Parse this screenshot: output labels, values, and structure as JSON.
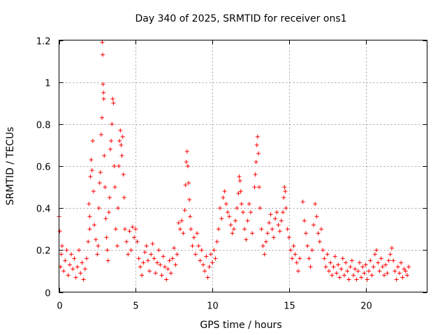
{
  "chart_data": {
    "type": "scatter",
    "title": "Day 340 of 2025, SRMTID for receiver ons1",
    "xlabel": "GPS time / hours",
    "ylabel": "SRMTID / TECUs",
    "xlim": [
      0,
      24
    ],
    "ylim": [
      0,
      1.2
    ],
    "x_ticks": [
      0,
      5,
      10,
      15,
      20
    ],
    "y_ticks": [
      0,
      0.2,
      0.4,
      0.6,
      0.8,
      1,
      1.2
    ],
    "x_tick_labels": [
      "0",
      "5",
      "10",
      "15",
      "20"
    ],
    "y_tick_labels": [
      "0",
      "0.2",
      "0.4",
      "0.6",
      "0.8",
      "1",
      "1.2"
    ],
    "grid": true,
    "marker": "+",
    "series": [
      {
        "name": "ons1",
        "color": "#ff0000",
        "points": [
          [
            0.0,
            0.36
          ],
          [
            0.05,
            0.29
          ],
          [
            0.1,
            0.12
          ],
          [
            0.15,
            0.18
          ],
          [
            0.2,
            0.22
          ],
          [
            0.3,
            0.1
          ],
          [
            0.4,
            0.15
          ],
          [
            0.5,
            0.2
          ],
          [
            0.6,
            0.08
          ],
          [
            0.7,
            0.13
          ],
          [
            0.8,
            0.18
          ],
          [
            0.9,
            0.11
          ],
          [
            1.0,
            0.16
          ],
          [
            1.1,
            0.07
          ],
          [
            1.2,
            0.12
          ],
          [
            1.3,
            0.2
          ],
          [
            1.4,
            0.09
          ],
          [
            1.5,
            0.14
          ],
          [
            1.6,
            0.06
          ],
          [
            1.7,
            0.11
          ],
          [
            1.8,
            0.16
          ],
          [
            1.9,
            0.24
          ],
          [
            2.0,
            0.3
          ],
          [
            1.95,
            0.42
          ],
          [
            2.0,
            0.36
          ],
          [
            2.05,
            0.55
          ],
          [
            2.1,
            0.63
          ],
          [
            2.15,
            0.58
          ],
          [
            2.2,
            0.72
          ],
          [
            2.25,
            0.48
          ],
          [
            2.3,
            0.32
          ],
          [
            2.4,
            0.25
          ],
          [
            2.5,
            0.18
          ],
          [
            2.55,
            0.22
          ],
          [
            2.6,
            0.4
          ],
          [
            2.65,
            0.52
          ],
          [
            2.7,
            0.57
          ],
          [
            2.75,
            0.75
          ],
          [
            2.8,
            0.83
          ],
          [
            2.82,
            1.19
          ],
          [
            2.85,
            1.13
          ],
          [
            2.87,
            0.99
          ],
          [
            2.9,
            0.95
          ],
          [
            2.92,
            0.92
          ],
          [
            2.95,
            0.65
          ],
          [
            3.0,
            0.5
          ],
          [
            3.05,
            0.35
          ],
          [
            3.1,
            0.26
          ],
          [
            3.15,
            0.2
          ],
          [
            3.2,
            0.15
          ],
          [
            3.25,
            0.38
          ],
          [
            3.3,
            0.45
          ],
          [
            3.35,
            0.68
          ],
          [
            3.4,
            0.72
          ],
          [
            3.45,
            0.8
          ],
          [
            3.5,
            0.92
          ],
          [
            3.55,
            0.9
          ],
          [
            3.6,
            0.6
          ],
          [
            3.65,
            0.5
          ],
          [
            3.7,
            0.3
          ],
          [
            3.8,
            0.22
          ],
          [
            3.85,
            0.4
          ],
          [
            3.9,
            0.6
          ],
          [
            3.95,
            0.72
          ],
          [
            4.0,
            0.77
          ],
          [
            4.05,
            0.7
          ],
          [
            4.1,
            0.65
          ],
          [
            4.15,
            0.74
          ],
          [
            4.2,
            0.56
          ],
          [
            4.25,
            0.45
          ],
          [
            4.3,
            0.3
          ],
          [
            4.4,
            0.24
          ],
          [
            4.5,
            0.18
          ],
          [
            4.6,
            0.29
          ],
          [
            4.7,
            0.2
          ],
          [
            4.8,
            0.31
          ],
          [
            4.9,
            0.26
          ],
          [
            5.0,
            0.3
          ],
          [
            5.1,
            0.24
          ],
          [
            5.2,
            0.16
          ],
          [
            5.3,
            0.12
          ],
          [
            5.4,
            0.08
          ],
          [
            5.5,
            0.14
          ],
          [
            5.6,
            0.19
          ],
          [
            5.7,
            0.22
          ],
          [
            5.8,
            0.15
          ],
          [
            5.9,
            0.1
          ],
          [
            6.0,
            0.18
          ],
          [
            6.1,
            0.23
          ],
          [
            6.2,
            0.16
          ],
          [
            6.3,
            0.09
          ],
          [
            6.4,
            0.14
          ],
          [
            6.5,
            0.2
          ],
          [
            6.6,
            0.13
          ],
          [
            6.7,
            0.08
          ],
          [
            6.8,
            0.17
          ],
          [
            6.9,
            0.12
          ],
          [
            7.0,
            0.06
          ],
          [
            7.1,
            0.11
          ],
          [
            7.2,
            0.15
          ],
          [
            7.3,
            0.09
          ],
          [
            7.4,
            0.16
          ],
          [
            7.5,
            0.21
          ],
          [
            7.6,
            0.13
          ],
          [
            7.7,
            0.18
          ],
          [
            7.8,
            0.33
          ],
          [
            7.9,
            0.3
          ],
          [
            8.0,
            0.34
          ],
          [
            8.1,
            0.28
          ],
          [
            8.2,
            0.39
          ],
          [
            8.25,
            0.51
          ],
          [
            8.3,
            0.62
          ],
          [
            8.35,
            0.67
          ],
          [
            8.4,
            0.6
          ],
          [
            8.45,
            0.52
          ],
          [
            8.5,
            0.44
          ],
          [
            8.55,
            0.36
          ],
          [
            8.6,
            0.3
          ],
          [
            8.7,
            0.22
          ],
          [
            8.8,
            0.26
          ],
          [
            8.9,
            0.18
          ],
          [
            9.0,
            0.28
          ],
          [
            9.1,
            0.22
          ],
          [
            9.2,
            0.15
          ],
          [
            9.3,
            0.2
          ],
          [
            9.4,
            0.13
          ],
          [
            9.5,
            0.1
          ],
          [
            9.6,
            0.17
          ],
          [
            9.7,
            0.07
          ],
          [
            9.8,
            0.12
          ],
          [
            9.9,
            0.18
          ],
          [
            10.0,
            0.14
          ],
          [
            10.1,
            0.2
          ],
          [
            10.2,
            0.16
          ],
          [
            10.3,
            0.24
          ],
          [
            10.4,
            0.3
          ],
          [
            10.5,
            0.4
          ],
          [
            10.6,
            0.35
          ],
          [
            10.7,
            0.45
          ],
          [
            10.8,
            0.48
          ],
          [
            10.9,
            0.42
          ],
          [
            11.0,
            0.38
          ],
          [
            11.1,
            0.36
          ],
          [
            11.2,
            0.32
          ],
          [
            11.3,
            0.28
          ],
          [
            11.4,
            0.3
          ],
          [
            11.5,
            0.34
          ],
          [
            11.6,
            0.4
          ],
          [
            11.7,
            0.47
          ],
          [
            11.75,
            0.55
          ],
          [
            11.8,
            0.53
          ],
          [
            11.85,
            0.48
          ],
          [
            11.9,
            0.42
          ],
          [
            12.0,
            0.38
          ],
          [
            12.1,
            0.3
          ],
          [
            12.2,
            0.25
          ],
          [
            12.3,
            0.34
          ],
          [
            12.4,
            0.42
          ],
          [
            12.5,
            0.38
          ],
          [
            12.6,
            0.28
          ],
          [
            12.75,
            0.5
          ],
          [
            12.8,
            0.56
          ],
          [
            12.85,
            0.62
          ],
          [
            12.9,
            0.7
          ],
          [
            12.95,
            0.74
          ],
          [
            13.0,
            0.66
          ],
          [
            13.05,
            0.5
          ],
          [
            13.1,
            0.4
          ],
          [
            13.2,
            0.3
          ],
          [
            13.3,
            0.22
          ],
          [
            13.4,
            0.18
          ],
          [
            13.5,
            0.24
          ],
          [
            13.6,
            0.28
          ],
          [
            13.7,
            0.33
          ],
          [
            13.8,
            0.37
          ],
          [
            13.9,
            0.3
          ],
          [
            14.0,
            0.26
          ],
          [
            14.1,
            0.35
          ],
          [
            14.2,
            0.38
          ],
          [
            14.3,
            0.32
          ],
          [
            14.4,
            0.29
          ],
          [
            14.5,
            0.34
          ],
          [
            14.6,
            0.38
          ],
          [
            14.65,
            0.45
          ],
          [
            14.7,
            0.5
          ],
          [
            14.75,
            0.48
          ],
          [
            14.8,
            0.4
          ],
          [
            14.9,
            0.3
          ],
          [
            15.0,
            0.26
          ],
          [
            15.1,
            0.2
          ],
          [
            15.2,
            0.16
          ],
          [
            15.3,
            0.22
          ],
          [
            15.4,
            0.18
          ],
          [
            15.5,
            0.14
          ],
          [
            15.6,
            0.1
          ],
          [
            15.7,
            0.16
          ],
          [
            15.9,
            0.43
          ],
          [
            16.0,
            0.34
          ],
          [
            16.1,
            0.28
          ],
          [
            16.2,
            0.22
          ],
          [
            16.3,
            0.16
          ],
          [
            16.4,
            0.12
          ],
          [
            16.5,
            0.2
          ],
          [
            16.6,
            0.32
          ],
          [
            16.7,
            0.42
          ],
          [
            16.8,
            0.36
          ],
          [
            16.9,
            0.28
          ],
          [
            17.0,
            0.24
          ],
          [
            17.1,
            0.3
          ],
          [
            17.2,
            0.2
          ],
          [
            17.3,
            0.16
          ],
          [
            17.4,
            0.12
          ],
          [
            17.5,
            0.18
          ],
          [
            17.6,
            0.1
          ],
          [
            17.7,
            0.14
          ],
          [
            17.8,
            0.08
          ],
          [
            17.9,
            0.12
          ],
          [
            18.0,
            0.17
          ],
          [
            18.1,
            0.09
          ],
          [
            18.2,
            0.13
          ],
          [
            18.3,
            0.07
          ],
          [
            18.4,
            0.11
          ],
          [
            18.5,
            0.16
          ],
          [
            18.6,
            0.08
          ],
          [
            18.7,
            0.14
          ],
          [
            18.8,
            0.1
          ],
          [
            18.9,
            0.06
          ],
          [
            19.0,
            0.12
          ],
          [
            19.1,
            0.15
          ],
          [
            19.2,
            0.08
          ],
          [
            19.3,
            0.11
          ],
          [
            19.4,
            0.06
          ],
          [
            19.5,
            0.1
          ],
          [
            19.6,
            0.14
          ],
          [
            19.7,
            0.07
          ],
          [
            19.8,
            0.12
          ],
          [
            19.9,
            0.09
          ],
          [
            20.0,
            0.13
          ],
          [
            20.1,
            0.06
          ],
          [
            20.2,
            0.1
          ],
          [
            20.3,
            0.15
          ],
          [
            20.4,
            0.08
          ],
          [
            20.5,
            0.12
          ],
          [
            20.6,
            0.18
          ],
          [
            20.7,
            0.2
          ],
          [
            20.8,
            0.14
          ],
          [
            20.9,
            0.1
          ],
          [
            21.0,
            0.16
          ],
          [
            21.1,
            0.12
          ],
          [
            21.2,
            0.08
          ],
          [
            21.3,
            0.13
          ],
          [
            21.4,
            0.09
          ],
          [
            21.5,
            0.15
          ],
          [
            21.6,
            0.18
          ],
          [
            21.7,
            0.21
          ],
          [
            21.8,
            0.15
          ],
          [
            21.9,
            0.1
          ],
          [
            22.0,
            0.06
          ],
          [
            22.1,
            0.12
          ],
          [
            22.2,
            0.09
          ],
          [
            22.3,
            0.14
          ],
          [
            22.4,
            0.07
          ],
          [
            22.5,
            0.11
          ],
          [
            22.6,
            0.1
          ],
          [
            22.7,
            0.08
          ],
          [
            22.8,
            0.12
          ]
        ]
      }
    ]
  }
}
